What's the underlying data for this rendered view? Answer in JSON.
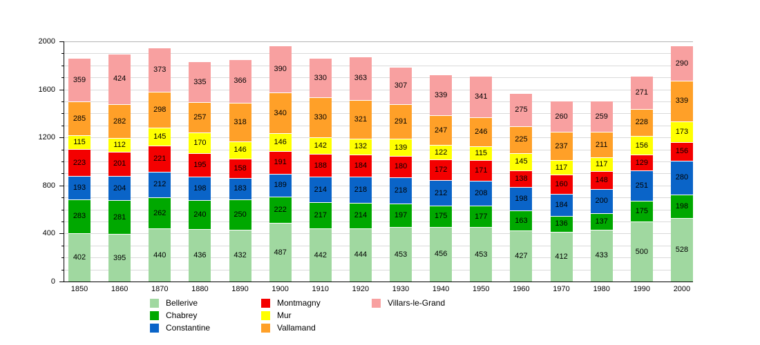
{
  "chart_data": {
    "type": "bar",
    "stacked": true,
    "title": "",
    "x": [
      "1850",
      "1860",
      "1870",
      "1880",
      "1890",
      "1900",
      "1910",
      "1920",
      "1930",
      "1940",
      "1950",
      "1960",
      "1970",
      "1980",
      "1990",
      "2000"
    ],
    "series": [
      {
        "name": "Bellerive",
        "color": "#a0d8a0",
        "values": [
          402,
          395,
          440,
          436,
          432,
          487,
          442,
          444,
          453,
          456,
          453,
          427,
          412,
          433,
          500,
          528
        ]
      },
      {
        "name": "Chabrey",
        "color": "#00a800",
        "values": [
          283,
          281,
          262,
          240,
          250,
          222,
          217,
          214,
          197,
          175,
          177,
          163,
          136,
          137,
          175,
          198
        ]
      },
      {
        "name": "Constantine",
        "color": "#0a64c8",
        "values": [
          193,
          204,
          212,
          198,
          183,
          189,
          214,
          218,
          218,
          212,
          208,
          198,
          184,
          200,
          251,
          280
        ]
      },
      {
        "name": "Montmagny",
        "color": "#f40000",
        "values": [
          223,
          201,
          221,
          195,
          158,
          191,
          188,
          184,
          180,
          172,
          171,
          138,
          160,
          148,
          129,
          156
        ]
      },
      {
        "name": "Mur",
        "color": "#ffff00",
        "values": [
          115,
          112,
          145,
          170,
          146,
          146,
          142,
          132,
          139,
          122,
          115,
          145,
          117,
          117,
          156,
          173
        ]
      },
      {
        "name": "Vallamand",
        "color": "#ffa028",
        "values": [
          285,
          282,
          298,
          257,
          318,
          340,
          330,
          321,
          291,
          247,
          246,
          225,
          237,
          211,
          228,
          339
        ]
      },
      {
        "name": "Villars-le-Grand",
        "color": "#f8a0a0",
        "values": [
          359,
          424,
          373,
          335,
          366,
          390,
          330,
          363,
          307,
          339,
          341,
          275,
          260,
          259,
          271,
          290
        ]
      }
    ],
    "ylim": [
      0,
      2000
    ],
    "yticks": [
      0,
      400,
      800,
      1200,
      1600,
      2000
    ],
    "minor_tick_step": 100,
    "grid_step": 100,
    "legend_position": "bottom",
    "legend_columns": [
      [
        "Bellerive",
        "Chabrey",
        "Constantine"
      ],
      [
        "Montmagny",
        "Mur",
        "Vallamand"
      ],
      [
        "Villars-le-Grand"
      ]
    ]
  }
}
